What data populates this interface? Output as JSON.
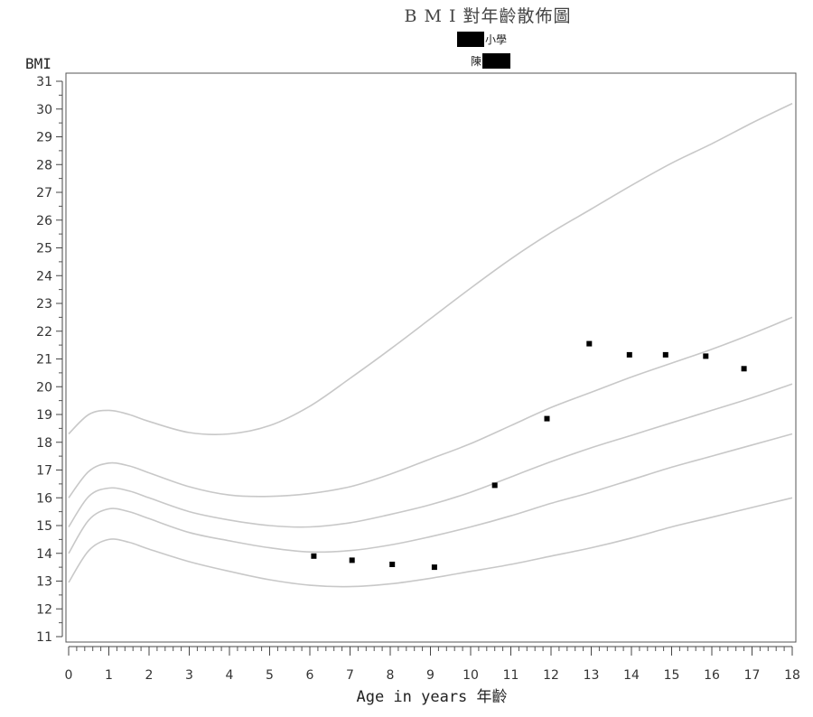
{
  "chart_data": {
    "type": "scatter",
    "title": "B M I 對年齡散佈圖",
    "subtitle_1": "小學",
    "subtitle_2": "陳",
    "ylabel": "BMI",
    "xlabel": "Age in years 年齡",
    "xlim": [
      0,
      18
    ],
    "ylim": [
      11,
      31
    ],
    "xticks": [
      0,
      1,
      2,
      3,
      4,
      5,
      6,
      7,
      8,
      9,
      10,
      11,
      12,
      13,
      14,
      15,
      16,
      17,
      18
    ],
    "yticks": [
      11,
      12,
      13,
      14,
      15,
      16,
      17,
      18,
      19,
      20,
      21,
      22,
      23,
      24,
      25,
      26,
      27,
      28,
      29,
      30,
      31
    ],
    "grid": false,
    "colors": {
      "points": "#000000",
      "reference_curves": "#c8c8c8",
      "redaction": "#000000"
    },
    "points": [
      {
        "x": 6.1,
        "y": 13.9
      },
      {
        "x": 7.05,
        "y": 13.75
      },
      {
        "x": 8.05,
        "y": 13.6
      },
      {
        "x": 9.1,
        "y": 13.5
      },
      {
        "x": 10.6,
        "y": 16.45
      },
      {
        "x": 11.9,
        "y": 18.85
      },
      {
        "x": 12.95,
        "y": 21.55
      },
      {
        "x": 13.95,
        "y": 21.15
      },
      {
        "x": 14.85,
        "y": 21.15
      },
      {
        "x": 15.85,
        "y": 21.1
      },
      {
        "x": 16.8,
        "y": 20.65
      }
    ],
    "reference_curves": [
      {
        "x": [
          0,
          0.5,
          1,
          1.5,
          2,
          3,
          4,
          5,
          6,
          7,
          8,
          9,
          10,
          11,
          12,
          13,
          14,
          15,
          16,
          17,
          18
        ],
        "y": [
          18.3,
          19.0,
          19.15,
          19.0,
          18.75,
          18.35,
          18.3,
          18.6,
          19.3,
          20.3,
          21.35,
          22.45,
          23.55,
          24.6,
          25.55,
          26.4,
          27.25,
          28.05,
          28.75,
          29.5,
          30.2
        ]
      },
      {
        "x": [
          0,
          0.5,
          1,
          1.5,
          2,
          3,
          4,
          5,
          6,
          7,
          8,
          9,
          10,
          11,
          12,
          13,
          14,
          15,
          16,
          17,
          18
        ],
        "y": [
          16.0,
          16.95,
          17.25,
          17.15,
          16.9,
          16.4,
          16.1,
          16.05,
          16.15,
          16.4,
          16.85,
          17.4,
          17.95,
          18.6,
          19.25,
          19.8,
          20.35,
          20.85,
          21.35,
          21.9,
          22.5
        ]
      },
      {
        "x": [
          0,
          0.5,
          1,
          1.5,
          2,
          3,
          4,
          5,
          6,
          7,
          8,
          9,
          10,
          11,
          12,
          13,
          14,
          15,
          16,
          17,
          18
        ],
        "y": [
          14.95,
          16.05,
          16.35,
          16.25,
          16.0,
          15.5,
          15.2,
          15.0,
          14.95,
          15.1,
          15.4,
          15.75,
          16.2,
          16.75,
          17.3,
          17.8,
          18.25,
          18.7,
          19.15,
          19.6,
          20.1
        ]
      },
      {
        "x": [
          0,
          0.5,
          1,
          1.5,
          2,
          3,
          4,
          5,
          6,
          7,
          8,
          9,
          10,
          11,
          12,
          13,
          14,
          15,
          16,
          17,
          18
        ],
        "y": [
          14.0,
          15.2,
          15.6,
          15.5,
          15.25,
          14.75,
          14.45,
          14.2,
          14.05,
          14.1,
          14.3,
          14.6,
          14.95,
          15.35,
          15.8,
          16.2,
          16.65,
          17.1,
          17.5,
          17.9,
          18.3
        ]
      },
      {
        "x": [
          0,
          0.5,
          1,
          1.5,
          2,
          3,
          4,
          5,
          6,
          7,
          8,
          9,
          10,
          11,
          12,
          13,
          14,
          15,
          16,
          17,
          18
        ],
        "y": [
          12.95,
          14.1,
          14.5,
          14.4,
          14.15,
          13.7,
          13.35,
          13.05,
          12.85,
          12.8,
          12.9,
          13.1,
          13.35,
          13.6,
          13.9,
          14.2,
          14.55,
          14.95,
          15.3,
          15.65,
          16.0
        ]
      }
    ]
  }
}
